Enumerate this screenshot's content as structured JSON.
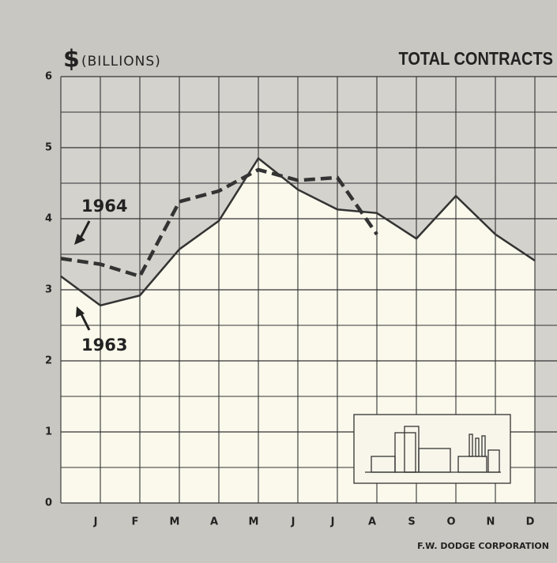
{
  "chart_data": {
    "type": "line",
    "title": "TOTAL CONTRACTS",
    "y_symbol": "$",
    "y_unit": "(BILLIONS)",
    "source": "F.W. DODGE CORPORATION",
    "categories": [
      null,
      "J",
      "F",
      "M",
      "A",
      "M",
      "J",
      "J",
      "A",
      "S",
      "O",
      "N",
      "D"
    ],
    "series": [
      {
        "name": "1963",
        "color": "#333333",
        "values": [
          3.19,
          2.78,
          2.92,
          3.57,
          3.97,
          4.85,
          4.41,
          4.13,
          4.08,
          3.72,
          4.32,
          3.78,
          3.41
        ]
      },
      {
        "name": "1964",
        "color": "#333333",
        "values": [
          3.44,
          3.36,
          3.19,
          4.24,
          4.39,
          4.69,
          4.54,
          4.58,
          3.78,
          null,
          null,
          null,
          null
        ]
      }
    ],
    "ylim": [
      0,
      6
    ],
    "yticks": [
      0,
      1,
      2,
      3,
      4,
      5,
      6
    ],
    "grid": true
  }
}
